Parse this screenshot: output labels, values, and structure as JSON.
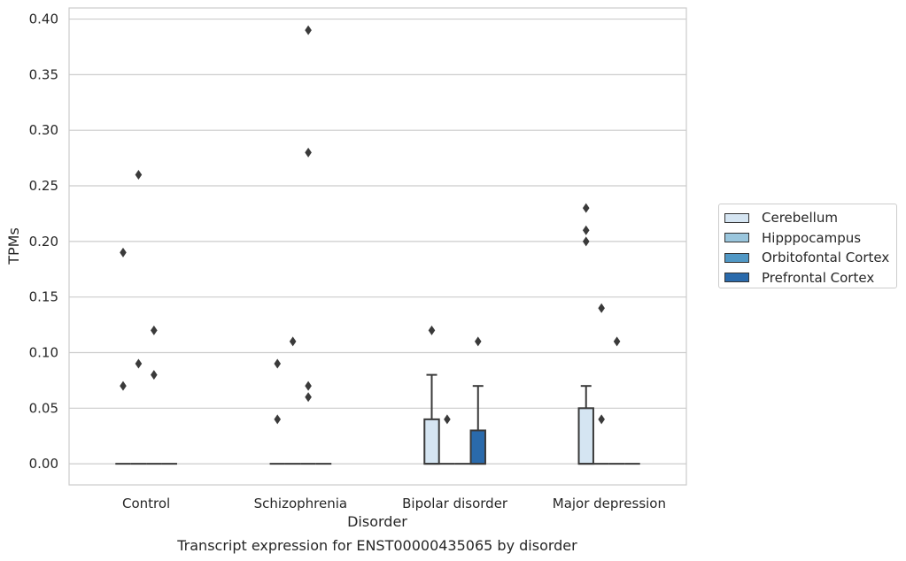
{
  "chart_data": {
    "type": "box",
    "title": "Transcript expression for ENST00000435065 by disorder",
    "xlabel": "Disorder",
    "ylabel": "TPMs",
    "ylim": [
      -0.019,
      0.41
    ],
    "yticks": [
      "0.00",
      "0.05",
      "0.10",
      "0.15",
      "0.20",
      "0.25",
      "0.30",
      "0.35",
      "0.40"
    ],
    "ytick_values": [
      0,
      0.05,
      0.1,
      0.15,
      0.2,
      0.25,
      0.3,
      0.35,
      0.4
    ],
    "categories": [
      "Control",
      "Schizophrenia",
      "Bipolar disorder",
      "Major depression"
    ],
    "grid": true,
    "legend_position": "right",
    "series": [
      {
        "name": "Cerebellum",
        "color": "#d5e5f2",
        "boxes": [
          {
            "q1": 0,
            "median": 0,
            "q3": 0,
            "whisker_low": 0,
            "whisker_high": 0,
            "outliers": [
              0.19,
              0.07
            ]
          },
          {
            "q1": 0,
            "median": 0,
            "q3": 0,
            "whisker_low": 0,
            "whisker_high": 0,
            "outliers": [
              0.09,
              0.04
            ]
          },
          {
            "q1": 0,
            "median": 0,
            "q3": 0.04,
            "whisker_low": 0,
            "whisker_high": 0.08,
            "outliers": [
              0.12
            ]
          },
          {
            "q1": 0,
            "median": 0,
            "q3": 0.05,
            "whisker_low": 0,
            "whisker_high": 0.07,
            "outliers": [
              0.23,
              0.21,
              0.2
            ]
          }
        ]
      },
      {
        "name": "Hipppocampus",
        "color": "#9ac6dd",
        "boxes": [
          {
            "q1": 0,
            "median": 0,
            "q3": 0,
            "whisker_low": 0,
            "whisker_high": 0,
            "outliers": [
              0.26,
              0.09
            ]
          },
          {
            "q1": 0,
            "median": 0,
            "q3": 0,
            "whisker_low": 0,
            "whisker_high": 0,
            "outliers": [
              0.11
            ]
          },
          {
            "q1": 0,
            "median": 0,
            "q3": 0,
            "whisker_low": 0,
            "whisker_high": 0,
            "outliers": [
              0.04
            ]
          },
          {
            "q1": 0,
            "median": 0,
            "q3": 0,
            "whisker_low": 0,
            "whisker_high": 0,
            "outliers": [
              0.14,
              0.04
            ]
          }
        ]
      },
      {
        "name": "Orbitofontal Cortex",
        "color": "#5198c5",
        "boxes": [
          {
            "q1": 0,
            "median": 0,
            "q3": 0,
            "whisker_low": 0,
            "whisker_high": 0,
            "outliers": [
              0.12,
              0.08
            ]
          },
          {
            "q1": 0,
            "median": 0,
            "q3": 0,
            "whisker_low": 0,
            "whisker_high": 0,
            "outliers": [
              0.39,
              0.28,
              0.07,
              0.06
            ]
          },
          {
            "q1": 0,
            "median": 0,
            "q3": 0,
            "whisker_low": 0,
            "whisker_high": 0,
            "outliers": []
          },
          {
            "q1": 0,
            "median": 0,
            "q3": 0,
            "whisker_low": 0,
            "whisker_high": 0,
            "outliers": [
              0.11
            ]
          }
        ]
      },
      {
        "name": "Prefrontal Cortex",
        "color": "#2a6aab",
        "boxes": [
          {
            "q1": 0,
            "median": 0,
            "q3": 0,
            "whisker_low": 0,
            "whisker_high": 0,
            "outliers": []
          },
          {
            "q1": 0,
            "median": 0,
            "q3": 0,
            "whisker_low": 0,
            "whisker_high": 0,
            "outliers": []
          },
          {
            "q1": 0,
            "median": 0,
            "q3": 0.03,
            "whisker_low": 0,
            "whisker_high": 0.07,
            "outliers": [
              0.11
            ]
          },
          {
            "q1": 0,
            "median": 0,
            "q3": 0,
            "whisker_low": 0,
            "whisker_high": 0,
            "outliers": []
          }
        ]
      }
    ]
  }
}
